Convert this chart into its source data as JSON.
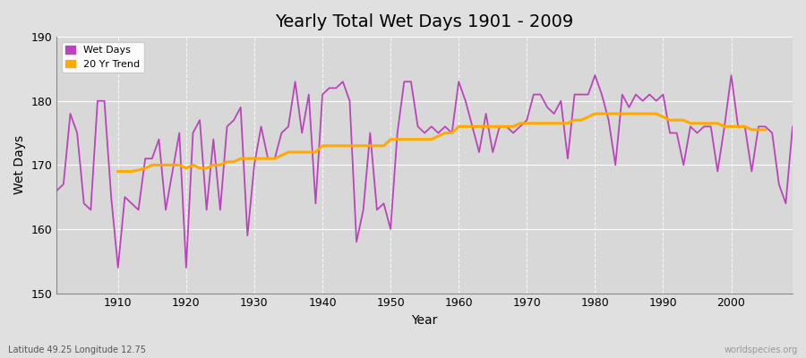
{
  "title": "Yearly Total Wet Days 1901 - 2009",
  "xlabel": "Year",
  "ylabel": "Wet Days",
  "lat_lon_label": "Latitude 49.25 Longitude 12.75",
  "watermark": "worldspecies.org",
  "ylim": [
    150,
    190
  ],
  "yticks": [
    150,
    160,
    170,
    180,
    190
  ],
  "line_color": "#bb44bb",
  "trend_color": "#ffaa00",
  "fig_bg_color": "#e0e0e0",
  "plot_bg_color": "#d8d8d8",
  "grid_color": "#ffffff",
  "years": [
    1901,
    1902,
    1903,
    1904,
    1905,
    1906,
    1907,
    1908,
    1909,
    1910,
    1911,
    1912,
    1913,
    1914,
    1915,
    1916,
    1917,
    1918,
    1919,
    1920,
    1921,
    1922,
    1923,
    1924,
    1925,
    1926,
    1927,
    1928,
    1929,
    1930,
    1931,
    1932,
    1933,
    1934,
    1935,
    1936,
    1937,
    1938,
    1939,
    1940,
    1941,
    1942,
    1943,
    1944,
    1945,
    1946,
    1947,
    1948,
    1949,
    1950,
    1951,
    1952,
    1953,
    1954,
    1955,
    1956,
    1957,
    1958,
    1959,
    1960,
    1961,
    1962,
    1963,
    1964,
    1965,
    1966,
    1967,
    1968,
    1969,
    1970,
    1971,
    1972,
    1973,
    1974,
    1975,
    1976,
    1977,
    1978,
    1979,
    1980,
    1981,
    1982,
    1983,
    1984,
    1985,
    1986,
    1987,
    1988,
    1989,
    1990,
    1991,
    1992,
    1993,
    1994,
    1995,
    1996,
    1997,
    1998,
    1999,
    2000,
    2001,
    2002,
    2003,
    2004,
    2005,
    2006,
    2007,
    2008,
    2009
  ],
  "wet_days": [
    166,
    167,
    178,
    175,
    164,
    163,
    180,
    180,
    165,
    154,
    165,
    164,
    163,
    171,
    171,
    174,
    163,
    169,
    175,
    154,
    175,
    177,
    163,
    174,
    163,
    176,
    177,
    179,
    159,
    170,
    176,
    171,
    171,
    175,
    176,
    183,
    175,
    181,
    164,
    181,
    182,
    182,
    183,
    180,
    158,
    163,
    175,
    163,
    164,
    160,
    175,
    183,
    183,
    176,
    175,
    176,
    175,
    176,
    175,
    183,
    180,
    176,
    172,
    178,
    172,
    176,
    176,
    175,
    176,
    177,
    181,
    181,
    179,
    178,
    180,
    171,
    181,
    181,
    181,
    184,
    181,
    177,
    170,
    181,
    179,
    181,
    180,
    181,
    180,
    181,
    175,
    175,
    170,
    176,
    175,
    176,
    176,
    169,
    176,
    184,
    176,
    176,
    169,
    176,
    176,
    175,
    167,
    164,
    176
  ],
  "trend_years": [
    1910,
    1911,
    1912,
    1913,
    1914,
    1915,
    1916,
    1917,
    1918,
    1919,
    1920,
    1921,
    1922,
    1923,
    1924,
    1925,
    1926,
    1927,
    1928,
    1929,
    1930,
    1931,
    1932,
    1933,
    1934,
    1935,
    1936,
    1937,
    1938,
    1939,
    1940,
    1941,
    1942,
    1943,
    1944,
    1945,
    1946,
    1947,
    1948,
    1949,
    1950,
    1951,
    1952,
    1953,
    1954,
    1955,
    1956,
    1957,
    1958,
    1959,
    1960,
    1961,
    1962,
    1963,
    1964,
    1965,
    1966,
    1967,
    1968,
    1969,
    1970,
    1971,
    1972,
    1973,
    1974,
    1975,
    1976,
    1977,
    1978,
    1979,
    1980,
    1981,
    1982,
    1983,
    1984,
    1985,
    1986,
    1987,
    1988,
    1989,
    1990,
    1991,
    1992,
    1993,
    1994,
    1995,
    1996,
    1997,
    1998,
    1999,
    2000,
    2001,
    2002,
    2003,
    2004,
    2005
  ],
  "trend_values": [
    169.0,
    169.0,
    169.0,
    169.2,
    169.5,
    170.0,
    170.0,
    170.0,
    170.0,
    170.0,
    169.5,
    170.0,
    169.5,
    169.5,
    170.0,
    170.0,
    170.5,
    170.5,
    171.0,
    171.0,
    171.0,
    171.0,
    171.0,
    171.0,
    171.5,
    172.0,
    172.0,
    172.0,
    172.0,
    172.0,
    173.0,
    173.0,
    173.0,
    173.0,
    173.0,
    173.0,
    173.0,
    173.0,
    173.0,
    173.0,
    174.0,
    174.0,
    174.0,
    174.0,
    174.0,
    174.0,
    174.0,
    174.5,
    175.0,
    175.0,
    176.0,
    176.0,
    176.0,
    176.0,
    176.0,
    176.0,
    176.0,
    176.0,
    176.0,
    176.5,
    176.5,
    176.5,
    176.5,
    176.5,
    176.5,
    176.5,
    176.5,
    177.0,
    177.0,
    177.5,
    178.0,
    178.0,
    178.0,
    178.0,
    178.0,
    178.0,
    178.0,
    178.0,
    178.0,
    178.0,
    177.5,
    177.0,
    177.0,
    177.0,
    176.5,
    176.5,
    176.5,
    176.5,
    176.5,
    176.0,
    176.0,
    176.0,
    176.0,
    175.5,
    175.5,
    175.5
  ],
  "xticks": [
    1910,
    1920,
    1930,
    1940,
    1950,
    1960,
    1970,
    1980,
    1990,
    2000
  ]
}
